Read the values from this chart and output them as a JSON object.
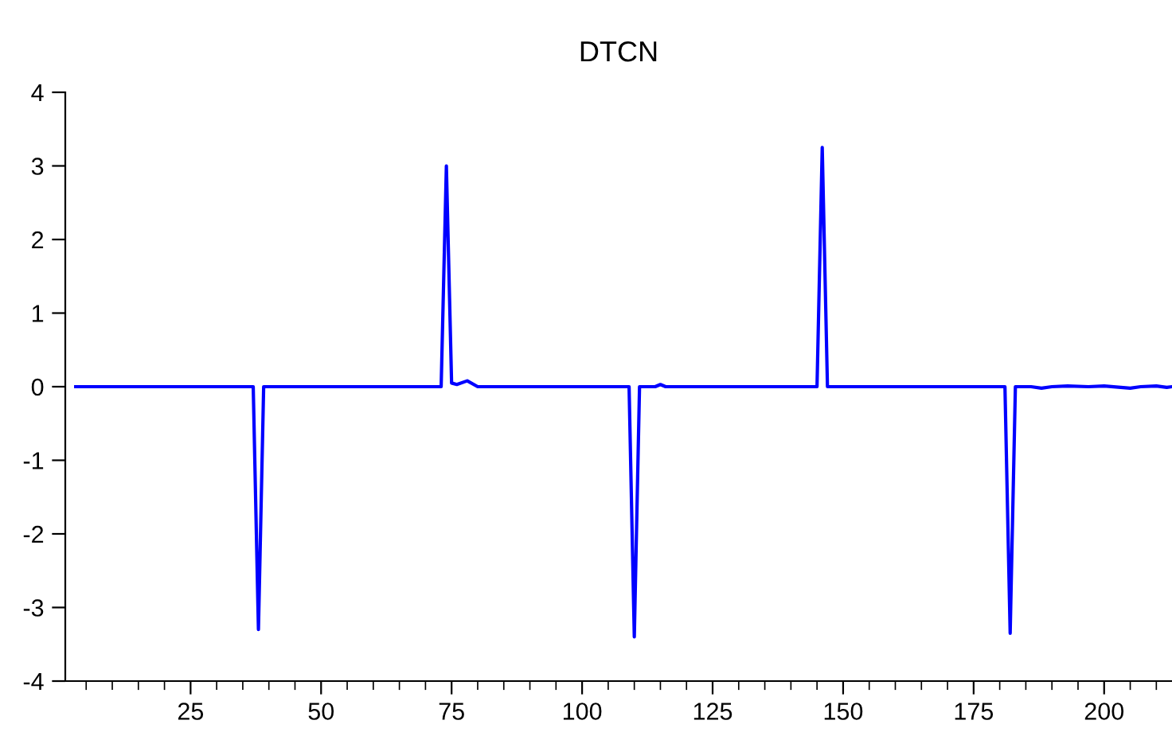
{
  "chart_data": {
    "type": "line",
    "title": "DTCN",
    "series": [
      {
        "color": "#0000ff",
        "x": [
          3,
          37,
          38,
          39,
          73,
          74,
          75,
          76,
          78,
          80,
          109,
          110,
          111,
          114,
          115,
          116,
          145,
          146,
          147,
          181,
          182,
          183,
          186,
          188,
          190,
          193,
          197,
          200,
          205,
          207,
          210,
          212,
          213
        ],
        "values": [
          0,
          0,
          -3.3,
          0,
          0,
          3.0,
          0.05,
          0.03,
          0.08,
          0,
          0,
          -3.4,
          0,
          0,
          0.03,
          0,
          0,
          3.25,
          0,
          0,
          -3.35,
          0,
          0,
          -0.02,
          0,
          0.01,
          0,
          0.01,
          -0.02,
          0,
          0.01,
          -0.01,
          0
        ]
      }
    ],
    "xlim": [
      1,
      213
    ],
    "xticks": [
      25,
      50,
      75,
      100,
      125,
      150,
      175,
      200
    ],
    "ylim": [
      -4,
      4
    ],
    "yticks": [
      -4,
      -3,
      -2,
      -1,
      0,
      1,
      2,
      3,
      4
    ],
    "grid": false,
    "marker": "none",
    "line_style": "solid"
  }
}
